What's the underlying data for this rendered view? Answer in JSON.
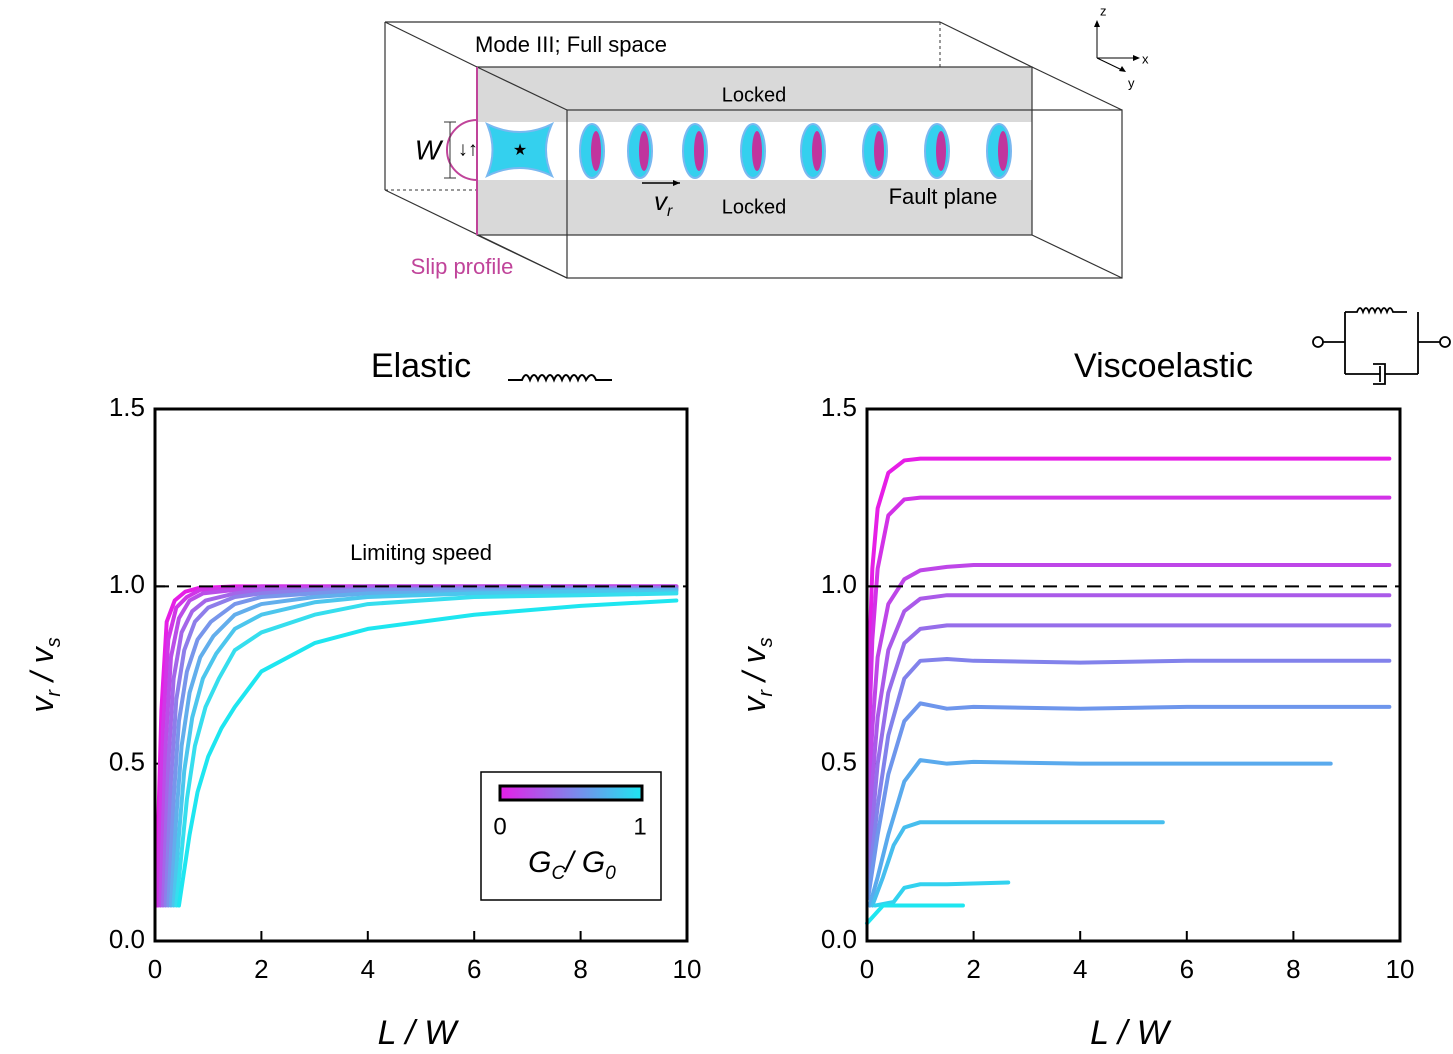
{
  "diagram": {
    "mode": "Mode III; Full space",
    "locked_top": "Locked",
    "locked_bottom": "Locked",
    "width": "W",
    "fault_plane": "Fault plane",
    "vr": "v",
    "vr_sub": "r",
    "slip_profile": "Slip profile",
    "axis_z": "z",
    "axis_x": "x",
    "axis_y": "y"
  },
  "chart_data": [
    {
      "type": "line",
      "title": "Elastic",
      "annotation": "Limiting speed",
      "reference_line": 1,
      "xlabel": "L / W",
      "ylabel": {
        "v1": "v",
        "s1": "r",
        "mid": " / v",
        "s2": "s"
      },
      "xlim": [
        0,
        10
      ],
      "xticks": [
        0,
        2,
        4,
        6,
        8,
        10
      ],
      "ylim": [
        0,
        1.5
      ],
      "yticks": [
        {
          "value": 0,
          "label": "0.0"
        },
        0.5,
        {
          "value": 1,
          "label": "1.0"
        },
        1.5
      ],
      "colorbar": {
        "ticks": [
          0,
          1
        ],
        "label": {
          "m1": "G",
          "s1": "C",
          "m2": "/ G",
          "s2": "0"
        },
        "colors": [
          "#e61ee6",
          "#1ee6f0"
        ]
      },
      "series": [
        {
          "color": "#e61ee6",
          "x": [
            0.02,
            0.12,
            0.22,
            0.37,
            0.57,
            0.82,
            1.5,
            2,
            3,
            4,
            6,
            8,
            9.8
          ],
          "values": [
            0.1,
            0.65,
            0.9,
            0.96,
            0.985,
            0.995,
            1,
            1,
            1,
            1,
            1,
            1,
            1
          ]
        },
        {
          "color": "#d036e7",
          "x": [
            0.05,
            0.15,
            0.25,
            0.4,
            0.6,
            0.85,
            1.5,
            2,
            3,
            4,
            6,
            8,
            9.8
          ],
          "values": [
            0.1,
            0.6,
            0.85,
            0.94,
            0.97,
            0.99,
            0.995,
            1,
            1,
            1,
            1,
            1,
            1
          ]
        },
        {
          "color": "#ba4ee8",
          "x": [
            0.1,
            0.2,
            0.3,
            0.45,
            0.65,
            0.9,
            1.5,
            2,
            3,
            4,
            6,
            8,
            9.8
          ],
          "values": [
            0.1,
            0.55,
            0.8,
            0.91,
            0.96,
            0.98,
            0.99,
            0.995,
            0.995,
            1,
            1,
            1,
            1
          ]
        },
        {
          "color": "#a466e9",
          "x": [
            0.15,
            0.25,
            0.35,
            0.5,
            0.7,
            0.95,
            1.5,
            2,
            3,
            4,
            6,
            8,
            9.8
          ],
          "values": [
            0.1,
            0.5,
            0.74,
            0.87,
            0.93,
            0.96,
            0.98,
            0.99,
            0.99,
            0.995,
            0.995,
            0.995,
            0.995
          ]
        },
        {
          "color": "#8e7eea",
          "x": [
            0.2,
            0.3,
            0.4,
            0.55,
            0.75,
            1,
            1.5,
            2,
            3,
            4,
            6,
            8,
            9.8
          ],
          "values": [
            0.1,
            0.45,
            0.68,
            0.82,
            0.9,
            0.94,
            0.97,
            0.98,
            0.99,
            0.99,
            0.995,
            0.995,
            0.995
          ]
        },
        {
          "color": "#7896eb",
          "x": [
            0.25,
            0.35,
            0.45,
            0.6,
            0.8,
            1.05,
            1.5,
            2,
            3,
            4,
            6,
            8,
            9.8
          ],
          "values": [
            0.1,
            0.4,
            0.62,
            0.76,
            0.85,
            0.9,
            0.95,
            0.97,
            0.98,
            0.99,
            0.99,
            0.99,
            0.99
          ]
        },
        {
          "color": "#62aeec",
          "x": [
            0.3,
            0.4,
            0.5,
            0.65,
            0.85,
            1.1,
            1.5,
            2,
            3,
            4,
            6,
            8,
            9.8
          ],
          "values": [
            0.1,
            0.35,
            0.55,
            0.7,
            0.8,
            0.86,
            0.92,
            0.95,
            0.97,
            0.98,
            0.985,
            0.99,
            0.99
          ]
        },
        {
          "color": "#4cc6ed",
          "x": [
            0.35,
            0.45,
            0.55,
            0.7,
            0.9,
            1.15,
            1.5,
            2,
            3,
            4,
            6,
            8,
            9.8
          ],
          "values": [
            0.1,
            0.3,
            0.48,
            0.63,
            0.74,
            0.81,
            0.88,
            0.92,
            0.955,
            0.97,
            0.98,
            0.985,
            0.985
          ]
        },
        {
          "color": "#36deee",
          "x": [
            0.4,
            0.5,
            0.6,
            0.75,
            0.95,
            1.2,
            1.5,
            2,
            3,
            4,
            6,
            8,
            9.8
          ],
          "values": [
            0.1,
            0.25,
            0.4,
            0.55,
            0.66,
            0.74,
            0.82,
            0.87,
            0.92,
            0.95,
            0.97,
            0.975,
            0.98
          ]
        },
        {
          "color": "#1ee6f0",
          "x": [
            0.45,
            0.55,
            0.65,
            0.8,
            1,
            1.25,
            1.5,
            2,
            3,
            4,
            6,
            8,
            9.8
          ],
          "values": [
            0.1,
            0.2,
            0.3,
            0.42,
            0.52,
            0.6,
            0.66,
            0.76,
            0.84,
            0.88,
            0.92,
            0.945,
            0.96
          ]
        }
      ]
    },
    {
      "type": "line",
      "title": "Viscoelastic",
      "reference_line": 1,
      "xlabel": "L / W",
      "ylabel": {
        "v1": "v",
        "s1": "r",
        "mid": " / v",
        "s2": "s"
      },
      "xlim": [
        0,
        10
      ],
      "xticks": [
        0,
        2,
        4,
        6,
        8,
        10
      ],
      "ylim": [
        0,
        1.5
      ],
      "yticks": [
        {
          "value": 0,
          "label": "0.0"
        },
        0.5,
        {
          "value": 1,
          "label": "1.0"
        },
        1.5
      ],
      "series": [
        {
          "color": "#e61ee6",
          "x": [
            0.02,
            0.1,
            0.2,
            0.4,
            0.7,
            1,
            1.5,
            2,
            4,
            6,
            8,
            9.8
          ],
          "values": [
            0.7,
            1.05,
            1.22,
            1.32,
            1.355,
            1.36,
            1.36,
            1.36,
            1.36,
            1.36,
            1.36,
            1.36
          ]
        },
        {
          "color": "#d232e7",
          "x": [
            0.02,
            0.1,
            0.2,
            0.4,
            0.7,
            1,
            1.5,
            2,
            4,
            6,
            8,
            9.8
          ],
          "values": [
            0.5,
            0.85,
            1.05,
            1.2,
            1.245,
            1.25,
            1.25,
            1.25,
            1.25,
            1.25,
            1.25,
            1.25
          ]
        },
        {
          "color": "#be46e8",
          "x": [
            0.02,
            0.1,
            0.2,
            0.4,
            0.7,
            1,
            1.5,
            2,
            4,
            6,
            8,
            9.8
          ],
          "values": [
            0.35,
            0.6,
            0.8,
            0.95,
            1.02,
            1.045,
            1.055,
            1.06,
            1.06,
            1.06,
            1.06,
            1.06
          ]
        },
        {
          "color": "#aa5ae9",
          "x": [
            0.02,
            0.1,
            0.2,
            0.4,
            0.7,
            1,
            1.5,
            2,
            4,
            6,
            8,
            9.8
          ],
          "values": [
            0.25,
            0.45,
            0.63,
            0.82,
            0.93,
            0.965,
            0.975,
            0.975,
            0.975,
            0.975,
            0.975,
            0.975
          ]
        },
        {
          "color": "#966eea",
          "x": [
            0.02,
            0.1,
            0.2,
            0.4,
            0.7,
            1,
            1.5,
            2,
            4,
            6,
            8,
            9.8
          ],
          "values": [
            0.18,
            0.33,
            0.5,
            0.7,
            0.84,
            0.88,
            0.89,
            0.89,
            0.89,
            0.89,
            0.89,
            0.89
          ]
        },
        {
          "color": "#8282eb",
          "x": [
            0.02,
            0.1,
            0.2,
            0.4,
            0.7,
            1,
            1.5,
            2,
            4,
            6,
            8,
            9.8
          ],
          "values": [
            0.14,
            0.25,
            0.38,
            0.58,
            0.74,
            0.79,
            0.795,
            0.79,
            0.785,
            0.79,
            0.79,
            0.79
          ]
        },
        {
          "color": "#6e96ec",
          "x": [
            0.02,
            0.1,
            0.2,
            0.4,
            0.7,
            1,
            1.5,
            2,
            4,
            6,
            8,
            9.8
          ],
          "values": [
            0.12,
            0.2,
            0.3,
            0.47,
            0.62,
            0.67,
            0.655,
            0.66,
            0.655,
            0.66,
            0.66,
            0.66
          ]
        },
        {
          "color": "#5aaaed",
          "x": [
            0.05,
            0.2,
            0.4,
            0.7,
            1,
            1.5,
            2,
            4,
            6,
            8.7
          ],
          "values": [
            0.1,
            0.18,
            0.3,
            0.45,
            0.51,
            0.5,
            0.505,
            0.5,
            0.5,
            0.5
          ]
        },
        {
          "color": "#46beee",
          "x": [
            0.1,
            0.3,
            0.5,
            0.7,
            1,
            2,
            4,
            5.55
          ],
          "values": [
            0.1,
            0.18,
            0.27,
            0.32,
            0.335,
            0.335,
            0.335,
            0.335
          ]
        },
        {
          "color": "#32d2ef",
          "x": [
            0.15,
            0.5,
            0.7,
            1,
            1.5,
            2.65
          ],
          "values": [
            0.1,
            0.11,
            0.15,
            0.16,
            0.16,
            0.165
          ]
        },
        {
          "color": "#1ee6f0",
          "x": [
            0,
            0.3,
            0.5,
            1,
            1.8
          ],
          "values": [
            0.05,
            0.1,
            0.1,
            0.1,
            0.1
          ]
        }
      ]
    }
  ]
}
